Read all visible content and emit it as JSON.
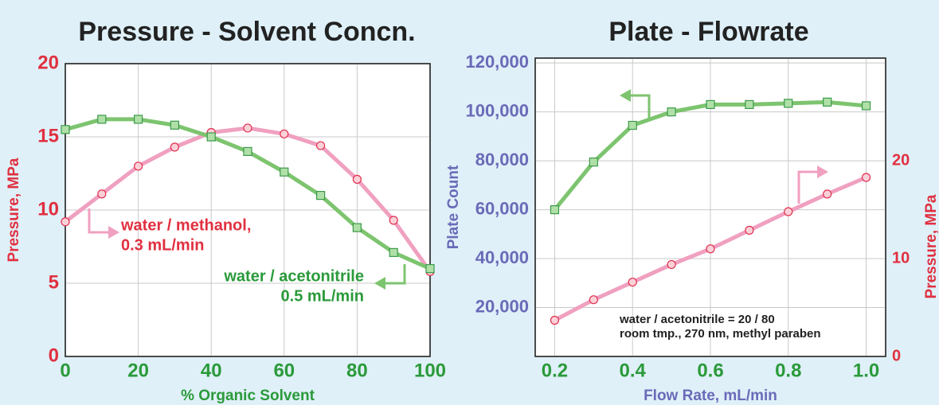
{
  "chart_data": [
    {
      "type": "line",
      "title": "Pressure - Solvent Concn.",
      "x_label": "% Organic Solvent",
      "y_label": "Pressure, MPa",
      "x": [
        0,
        10,
        20,
        30,
        40,
        50,
        60,
        70,
        80,
        90,
        100
      ],
      "xlim": [
        0,
        100
      ],
      "xticks": [
        0,
        20,
        40,
        60,
        80,
        100
      ],
      "ylim": [
        0,
        20
      ],
      "yticks": [
        0,
        5,
        10,
        15,
        20
      ],
      "grid": true,
      "series": [
        {
          "color": "#f0a0c0",
          "marker_color": "#e03050",
          "marker": "circle",
          "values": [
            9.2,
            11.1,
            13.0,
            14.3,
            15.3,
            15.6,
            15.2,
            14.4,
            12.1,
            9.3,
            5.8
          ]
        },
        {
          "color": "#7dc46f",
          "marker_color": "#3a9a4a",
          "marker": "square",
          "values": [
            15.5,
            16.2,
            16.2,
            15.8,
            15.0,
            14.0,
            12.6,
            11.0,
            8.8,
            7.1,
            6.0
          ]
        }
      ],
      "annotations": [
        "water / methanol,",
        "0.3 mL/min",
        "water / acetonitrile",
        "0.5 mL/min"
      ]
    },
    {
      "type": "line",
      "title": "Plate - Flowrate",
      "x_label": "Flow Rate, mL/min",
      "y_label": "Plate Count",
      "y2_label": "Pressure, MPa",
      "x": [
        0.2,
        0.3,
        0.4,
        0.5,
        0.6,
        0.7,
        0.8,
        0.9,
        1.0
      ],
      "xlim": [
        0.15,
        1.05
      ],
      "xticks": [
        0.2,
        0.4,
        0.6,
        0.8,
        {
          "value": 1.0,
          "label": "1.0"
        }
      ],
      "ylim": [
        0,
        122000
      ],
      "yticks": [
        {
          "value": 20000,
          "label": "20,000"
        },
        {
          "value": 40000,
          "label": "40,000"
        },
        {
          "value": 60000,
          "label": "60,000"
        },
        {
          "value": 80000,
          "label": "80,000"
        },
        {
          "value": 100000,
          "label": "100,000"
        },
        {
          "value": 120000,
          "label": "120,000"
        }
      ],
      "y2lim": [
        0,
        30.5
      ],
      "y2ticks": [
        0,
        10,
        20
      ],
      "grid": true,
      "series": [
        {
          "color": "#7dc46f",
          "marker_color": "#3a9a4a",
          "marker": "square",
          "values": [
            60000,
            79500,
            94500,
            100000,
            103000,
            103000,
            103500,
            104000,
            102500
          ]
        },
        {
          "color": "#f0a0c0",
          "marker_color": "#e03050",
          "marker": "circle",
          "axis": "y2",
          "values": [
            3.7,
            5.8,
            7.6,
            9.4,
            11.0,
            12.9,
            14.8,
            16.6,
            18.3
          ]
        }
      ],
      "annotations": [
        "water / acetonitrile = 20 / 80",
        "room tmp., 270 nm, methyl paraben"
      ]
    }
  ]
}
